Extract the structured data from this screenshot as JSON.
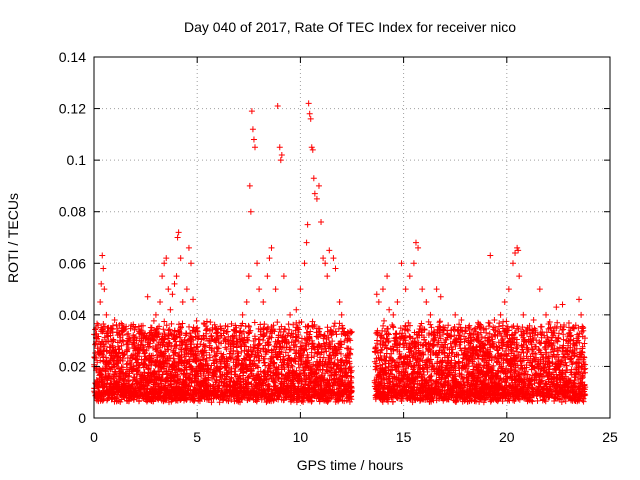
{
  "chart_data": {
    "type": "scatter",
    "title": "Day 040 of 2017, Rate Of TEC Index for receiver nico",
    "xlabel": "GPS time / hours",
    "ylabel": "ROTI / TECUs",
    "xlim": [
      0,
      25
    ],
    "ylim": [
      0,
      0.14
    ],
    "xticks": [
      0,
      5,
      10,
      15,
      20,
      25
    ],
    "yticks": [
      0,
      0.02,
      0.04,
      0.06,
      0.08,
      0.1,
      0.12,
      0.14
    ],
    "xtick_labels": [
      "0",
      "5",
      "10",
      "15",
      "20",
      "25"
    ],
    "ytick_labels": [
      "0",
      "0.02",
      "0.04",
      "0.06",
      "0.08",
      "0.1",
      "0.12",
      "0.14"
    ],
    "grid": true,
    "marker": "+",
    "marker_color": "#ff0000",
    "series": [
      {
        "points": [
          [
            0.1,
            0.031
          ],
          [
            0.15,
            0.012
          ],
          [
            0.2,
            0.036
          ],
          [
            0.3,
            0.045
          ],
          [
            0.35,
            0.052
          ],
          [
            0.4,
            0.063
          ],
          [
            0.45,
            0.058
          ],
          [
            0.5,
            0.05
          ],
          [
            0.6,
            0.04
          ],
          [
            0.7,
            0.035
          ],
          [
            0.8,
            0.032
          ],
          [
            0.9,
            0.028
          ],
          [
            1.0,
            0.038
          ],
          [
            1.2,
            0.025
          ],
          [
            1.4,
            0.034
          ],
          [
            1.6,
            0.03
          ],
          [
            1.8,
            0.036
          ],
          [
            2.0,
            0.027
          ],
          [
            2.3,
            0.03
          ],
          [
            2.6,
            0.047
          ],
          [
            2.8,
            0.035
          ],
          [
            3.0,
            0.04
          ],
          [
            3.2,
            0.045
          ],
          [
            3.3,
            0.055
          ],
          [
            3.4,
            0.06
          ],
          [
            3.5,
            0.062
          ],
          [
            3.6,
            0.05
          ],
          [
            3.7,
            0.042
          ],
          [
            3.8,
            0.048
          ],
          [
            3.9,
            0.052
          ],
          [
            4.0,
            0.055
          ],
          [
            4.05,
            0.07
          ],
          [
            4.1,
            0.072
          ],
          [
            4.2,
            0.062
          ],
          [
            4.3,
            0.045
          ],
          [
            4.5,
            0.05
          ],
          [
            4.6,
            0.066
          ],
          [
            4.7,
            0.06
          ],
          [
            4.8,
            0.046
          ],
          [
            5.0,
            0.035
          ],
          [
            5.3,
            0.032
          ],
          [
            5.6,
            0.03
          ],
          [
            6.0,
            0.033
          ],
          [
            6.3,
            0.034
          ],
          [
            6.6,
            0.03
          ],
          [
            6.9,
            0.035
          ],
          [
            7.2,
            0.04
          ],
          [
            7.4,
            0.045
          ],
          [
            7.5,
            0.055
          ],
          [
            7.55,
            0.09
          ],
          [
            7.6,
            0.08
          ],
          [
            7.65,
            0.119
          ],
          [
            7.7,
            0.112
          ],
          [
            7.75,
            0.108
          ],
          [
            7.8,
            0.105
          ],
          [
            7.9,
            0.06
          ],
          [
            8.0,
            0.05
          ],
          [
            8.2,
            0.045
          ],
          [
            8.4,
            0.055
          ],
          [
            8.5,
            0.062
          ],
          [
            8.6,
            0.066
          ],
          [
            8.8,
            0.05
          ],
          [
            8.9,
            0.121
          ],
          [
            9.0,
            0.105
          ],
          [
            9.05,
            0.1
          ],
          [
            9.1,
            0.102
          ],
          [
            9.2,
            0.055
          ],
          [
            9.5,
            0.04
          ],
          [
            9.8,
            0.042
          ],
          [
            10.0,
            0.05
          ],
          [
            10.2,
            0.06
          ],
          [
            10.3,
            0.068
          ],
          [
            10.35,
            0.075
          ],
          [
            10.4,
            0.122
          ],
          [
            10.45,
            0.118
          ],
          [
            10.5,
            0.116
          ],
          [
            10.55,
            0.105
          ],
          [
            10.6,
            0.104
          ],
          [
            10.65,
            0.093
          ],
          [
            10.7,
            0.087
          ],
          [
            10.8,
            0.085
          ],
          [
            10.9,
            0.09
          ],
          [
            11.0,
            0.076
          ],
          [
            11.1,
            0.062
          ],
          [
            11.2,
            0.06
          ],
          [
            11.3,
            0.055
          ],
          [
            11.4,
            0.065
          ],
          [
            11.6,
            0.062
          ],
          [
            11.7,
            0.058
          ],
          [
            11.9,
            0.045
          ],
          [
            12.0,
            0.04
          ],
          [
            12.2,
            0.032
          ],
          [
            12.4,
            0.025
          ],
          [
            13.7,
            0.048
          ],
          [
            13.8,
            0.045
          ],
          [
            14.0,
            0.05
          ],
          [
            14.2,
            0.055
          ],
          [
            14.3,
            0.042
          ],
          [
            14.5,
            0.04
          ],
          [
            14.7,
            0.045
          ],
          [
            14.9,
            0.06
          ],
          [
            15.1,
            0.05
          ],
          [
            15.3,
            0.055
          ],
          [
            15.5,
            0.06
          ],
          [
            15.6,
            0.068
          ],
          [
            15.7,
            0.066
          ],
          [
            15.9,
            0.05
          ],
          [
            16.1,
            0.045
          ],
          [
            16.3,
            0.04
          ],
          [
            16.6,
            0.05
          ],
          [
            16.8,
            0.047
          ],
          [
            17.0,
            0.035
          ],
          [
            17.2,
            0.032
          ],
          [
            17.5,
            0.04
          ],
          [
            17.8,
            0.038
          ],
          [
            18.0,
            0.035
          ],
          [
            18.3,
            0.03
          ],
          [
            18.6,
            0.03
          ],
          [
            19.0,
            0.033
          ],
          [
            19.2,
            0.063
          ],
          [
            19.4,
            0.038
          ],
          [
            19.7,
            0.04
          ],
          [
            19.9,
            0.045
          ],
          [
            20.1,
            0.05
          ],
          [
            20.3,
            0.06
          ],
          [
            20.4,
            0.064
          ],
          [
            20.5,
            0.066
          ],
          [
            20.55,
            0.065
          ],
          [
            20.6,
            0.055
          ],
          [
            20.8,
            0.04
          ],
          [
            21.0,
            0.035
          ],
          [
            21.3,
            0.038
          ],
          [
            21.6,
            0.05
          ],
          [
            21.9,
            0.04
          ],
          [
            22.1,
            0.035
          ],
          [
            22.4,
            0.043
          ],
          [
            22.7,
            0.044
          ],
          [
            23.0,
            0.03
          ],
          [
            23.3,
            0.028
          ],
          [
            23.5,
            0.046
          ],
          [
            23.6,
            0.04
          ],
          [
            23.7,
            0.035
          ]
        ]
      }
    ]
  }
}
